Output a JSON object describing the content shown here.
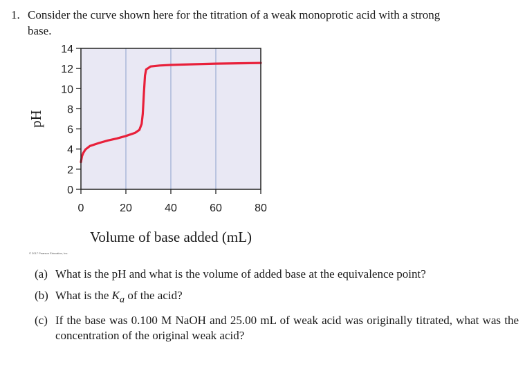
{
  "question": {
    "number": "1.",
    "intro_line1": "Consider the curve shown here for the titration of a weak monoprotic acid with a strong",
    "intro_line2": "base."
  },
  "chart_data": {
    "type": "line",
    "title": "",
    "xlabel": "Volume of base added (mL)",
    "ylabel": "pH",
    "xlim": [
      0,
      80
    ],
    "ylim": [
      0,
      14
    ],
    "x_ticks": [
      0,
      20,
      40,
      60,
      80
    ],
    "y_ticks": [
      0,
      2,
      4,
      6,
      8,
      10,
      12,
      14
    ],
    "grid": "vertical",
    "series": [
      {
        "points": [
          [
            0,
            2.7
          ],
          [
            0.5,
            3.3
          ],
          [
            1,
            3.6
          ],
          [
            2,
            3.95
          ],
          [
            4,
            4.3
          ],
          [
            8,
            4.6
          ],
          [
            12,
            4.85
          ],
          [
            16,
            5.05
          ],
          [
            20,
            5.3
          ],
          [
            24,
            5.6
          ],
          [
            26,
            5.9
          ],
          [
            27,
            6.5
          ],
          [
            27.5,
            7.5
          ],
          [
            28,
            9.5
          ],
          [
            28.5,
            11.3
          ],
          [
            29,
            11.9
          ],
          [
            31,
            12.2
          ],
          [
            35,
            12.3
          ],
          [
            40,
            12.35
          ],
          [
            50,
            12.42
          ],
          [
            60,
            12.48
          ],
          [
            70,
            12.52
          ],
          [
            80,
            12.55
          ]
        ],
        "color": "#e8203a"
      }
    ],
    "plot_background": "#e9e8f4",
    "grid_color": "#8aa0cc",
    "copyright": "© 2017 Pearson Education, Inc."
  },
  "parts": [
    {
      "label": "(a)",
      "text": "What is the pH and what is the volume of added base at the equivalence point?"
    },
    {
      "label": "(b)",
      "text_before": "What is the ",
      "k_symbol": "K",
      "k_sub": "a",
      "text_after": " of the acid?"
    },
    {
      "label": "(c)",
      "text": "If the base was 0.100 M NaOH and 25.00 mL of weak acid was originally titrated, what was the concentration of the original weak acid?"
    }
  ]
}
